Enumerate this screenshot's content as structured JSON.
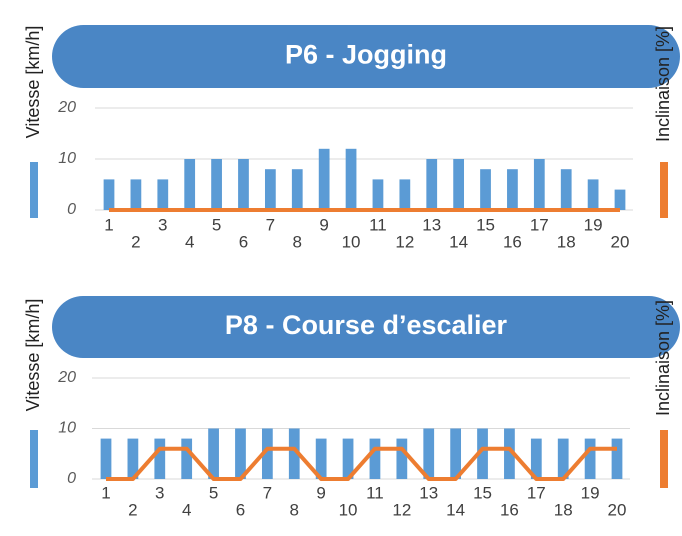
{
  "chart_data": [
    {
      "type": "bar",
      "title": "P6 - Jogging",
      "categories": [
        "1",
        "2",
        "3",
        "4",
        "5",
        "6",
        "7",
        "8",
        "9",
        "10",
        "11",
        "12",
        "13",
        "14",
        "15",
        "16",
        "17",
        "18",
        "19",
        "20"
      ],
      "series": [
        {
          "name": "Vitesse [km/h]",
          "color": "#5b9bd5",
          "values": [
            6,
            6,
            6,
            10,
            10,
            10,
            8,
            8,
            12,
            12,
            6,
            6,
            10,
            10,
            8,
            8,
            10,
            8,
            6,
            4
          ]
        },
        {
          "name": "Inclinaison [%]",
          "color": "#ed7d31",
          "type": "line",
          "values": [
            0,
            0,
            0,
            0,
            0,
            0,
            0,
            0,
            0,
            0,
            0,
            0,
            0,
            0,
            0,
            0,
            0,
            0,
            0,
            0
          ]
        }
      ],
      "ylim": [
        0,
        20
      ],
      "yticks": [
        0,
        10,
        20
      ],
      "grid": true
    },
    {
      "type": "bar",
      "title": "P8 - Course d’escalier",
      "categories": [
        "1",
        "2",
        "3",
        "4",
        "5",
        "6",
        "7",
        "8",
        "9",
        "10",
        "11",
        "12",
        "13",
        "14",
        "15",
        "16",
        "17",
        "18",
        "19",
        "20"
      ],
      "series": [
        {
          "name": "Vitesse [km/h]",
          "color": "#5b9bd5",
          "values": [
            8,
            8,
            8,
            8,
            10,
            10,
            10,
            10,
            8,
            8,
            8,
            8,
            10,
            10,
            10,
            10,
            8,
            8,
            8,
            8
          ]
        },
        {
          "name": "Inclinaison [%]",
          "color": "#ed7d31",
          "type": "line",
          "values": [
            0,
            0,
            6,
            6,
            0,
            0,
            6,
            6,
            0,
            0,
            6,
            6,
            0,
            0,
            6,
            6,
            0,
            0,
            6,
            6
          ]
        }
      ],
      "ylim": [
        0,
        20
      ],
      "yticks": [
        0,
        10,
        20
      ],
      "grid": true
    }
  ]
}
